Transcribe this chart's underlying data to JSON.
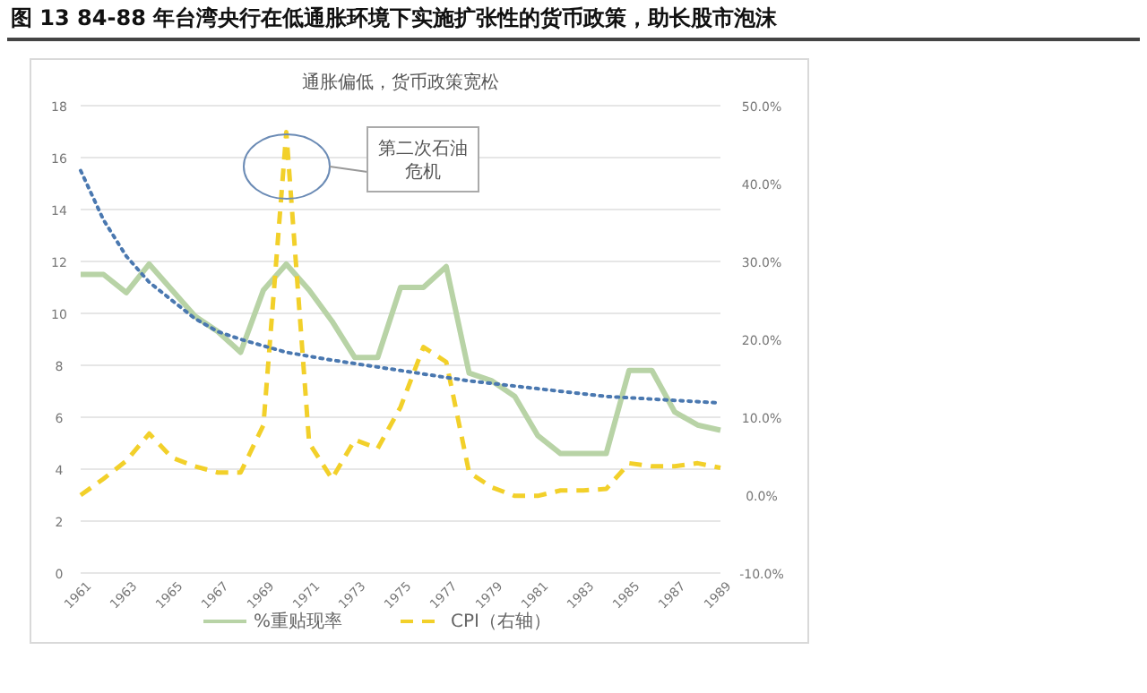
{
  "chart_data": {
    "type": "line",
    "title": "图 13   84-88 年台湾央行在低通胀环境下实施扩张性的货币政策，助长股市泡沫",
    "subtitle": "通胀偏低，货币政策宽松",
    "x": [
      1961,
      1962,
      1963,
      1964,
      1965,
      1966,
      1967,
      1968,
      1969,
      1970,
      1971,
      1972,
      1973,
      1974,
      1975,
      1976,
      1977,
      1978,
      1979,
      1980,
      1981,
      1982,
      1983,
      1984,
      1985,
      1986,
      1987,
      1988,
      1989
    ],
    "series": [
      {
        "name": "%重贴现率",
        "color": "#b8d3a6",
        "line_style": "solid",
        "values": [
          11.5,
          11.5,
          10.8,
          11.9,
          10.9,
          9.9,
          9.3,
          8.5,
          10.9,
          11.9,
          10.9,
          9.7,
          8.3,
          8.3,
          11,
          11,
          11.8,
          7.7,
          7.4,
          6.8,
          5.3,
          4.6,
          4.6,
          4.6,
          7.8,
          7.8,
          6.2,
          5.7,
          5.5
        ]
      },
      {
        "name": "CPI（右轴）",
        "color": "#f2d02a",
        "line_style": "dashed",
        "axis": "y2",
        "values": [
          0,
          2.1,
          4.4,
          7.9,
          4.8,
          3.7,
          2.9,
          2.9,
          9,
          46.6,
          6.7,
          2.1,
          7.1,
          6,
          11.3,
          19,
          17.1,
          2.9,
          1,
          -0.1,
          -0.1,
          0.6,
          0.6,
          0.8,
          4.1,
          3.7,
          3.7,
          4.1,
          3.5
        ]
      },
      {
        "type": "line",
        "color": "#4a78b0",
        "line_style": "dotted",
        "x": [
          1961,
          1962,
          1963,
          1964,
          1965,
          1966,
          1967,
          1968,
          1970,
          1972,
          1975,
          1978,
          1981,
          1984,
          1989
        ],
        "values": [
          15.5,
          13.6,
          12.2,
          11.2,
          10.5,
          9.8,
          9.3,
          9,
          8.5,
          8.2,
          7.8,
          7.4,
          7.1,
          6.8,
          6.55
        ]
      }
    ],
    "xlim": [
      1961,
      1989
    ],
    "xticks": [
      1961,
      1963,
      1965,
      1967,
      1969,
      1971,
      1973,
      1975,
      1977,
      1979,
      1981,
      1983,
      1985,
      1987,
      1989
    ],
    "ylim": [
      0,
      18
    ],
    "yticks": [
      0,
      2,
      4,
      6,
      8,
      10,
      12,
      14,
      16,
      18
    ],
    "y2lim": [
      -10,
      50
    ],
    "y2ticks": [
      {
        "value": -10,
        "label": "-10.0%"
      },
      {
        "value": 0,
        "label": "0.0%"
      },
      {
        "value": 10,
        "label": "10.0%"
      },
      {
        "value": 20,
        "label": "20.0%"
      },
      {
        "value": 30,
        "label": "30.0%"
      },
      {
        "value": 40,
        "label": "40.0%"
      },
      {
        "value": 50,
        "label": "50.0%"
      }
    ],
    "grid": "y",
    "legend": "bottom",
    "annotations": [
      "第二次石油危机"
    ]
  }
}
